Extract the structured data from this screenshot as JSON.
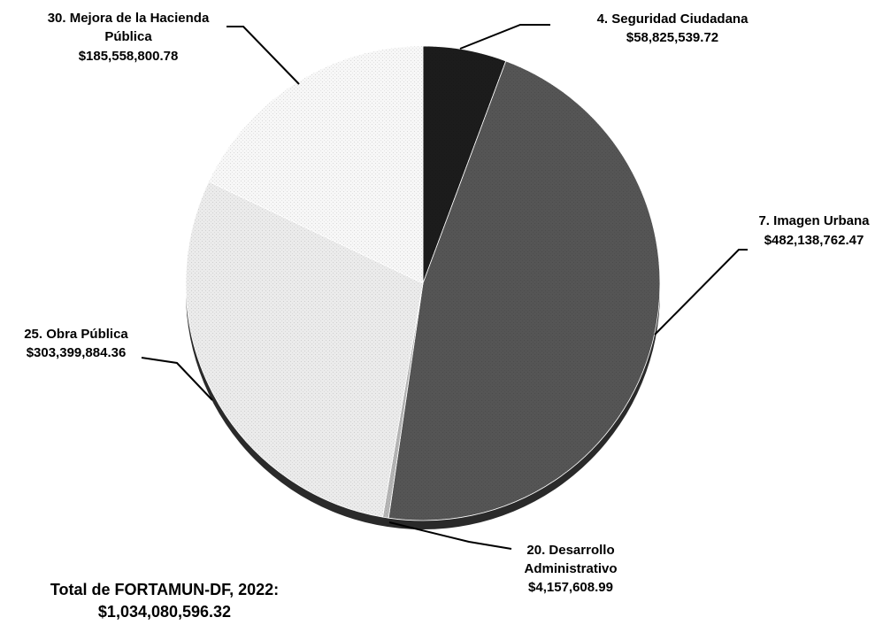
{
  "chart_data": {
    "type": "pie",
    "slices": [
      {
        "name": "4. Seguridad Ciudadana",
        "value": 58825539.72,
        "value_label": "$58,825,539.72",
        "color": "#1c1c1c"
      },
      {
        "name": "7. Imagen Urbana",
        "value": 482138762.47,
        "value_label": "$482,138,762.47",
        "color": "#555555"
      },
      {
        "name": "20. Desarrollo Administrativo",
        "value": 4157608.99,
        "value_label": "$4,157,608.99",
        "color": "#b5b5b5"
      },
      {
        "name": "25. Obra Pública",
        "value": 303399884.36,
        "value_label": "$303,399,884.36",
        "color": "#ebebeb"
      },
      {
        "name": "30. Mejora de la Hacienda Pública",
        "value": 185558800.78,
        "value_label": "$185,558,800.78",
        "color": "#f7f7f7"
      }
    ]
  },
  "labels": {
    "seg": {
      "line1": "4. Seguridad Ciudadana",
      "value": "$58,825,539.72"
    },
    "img": {
      "line1": "7. Imagen Urbana",
      "value": "$482,138,762.47"
    },
    "des": {
      "line1": "20. Desarrollo",
      "line2": "Administrativo",
      "value": "$4,157,608.99"
    },
    "obra": {
      "line1": "25. Obra Pública",
      "value": "$303,399,884.36"
    },
    "mej": {
      "line1": "30. Mejora de la Hacienda",
      "line2": "Pública",
      "value": "$185,558,800.78"
    }
  },
  "total": {
    "label": "Total de FORTAMUN-DF, 2022:",
    "value": "$1,034,080,596.32"
  }
}
